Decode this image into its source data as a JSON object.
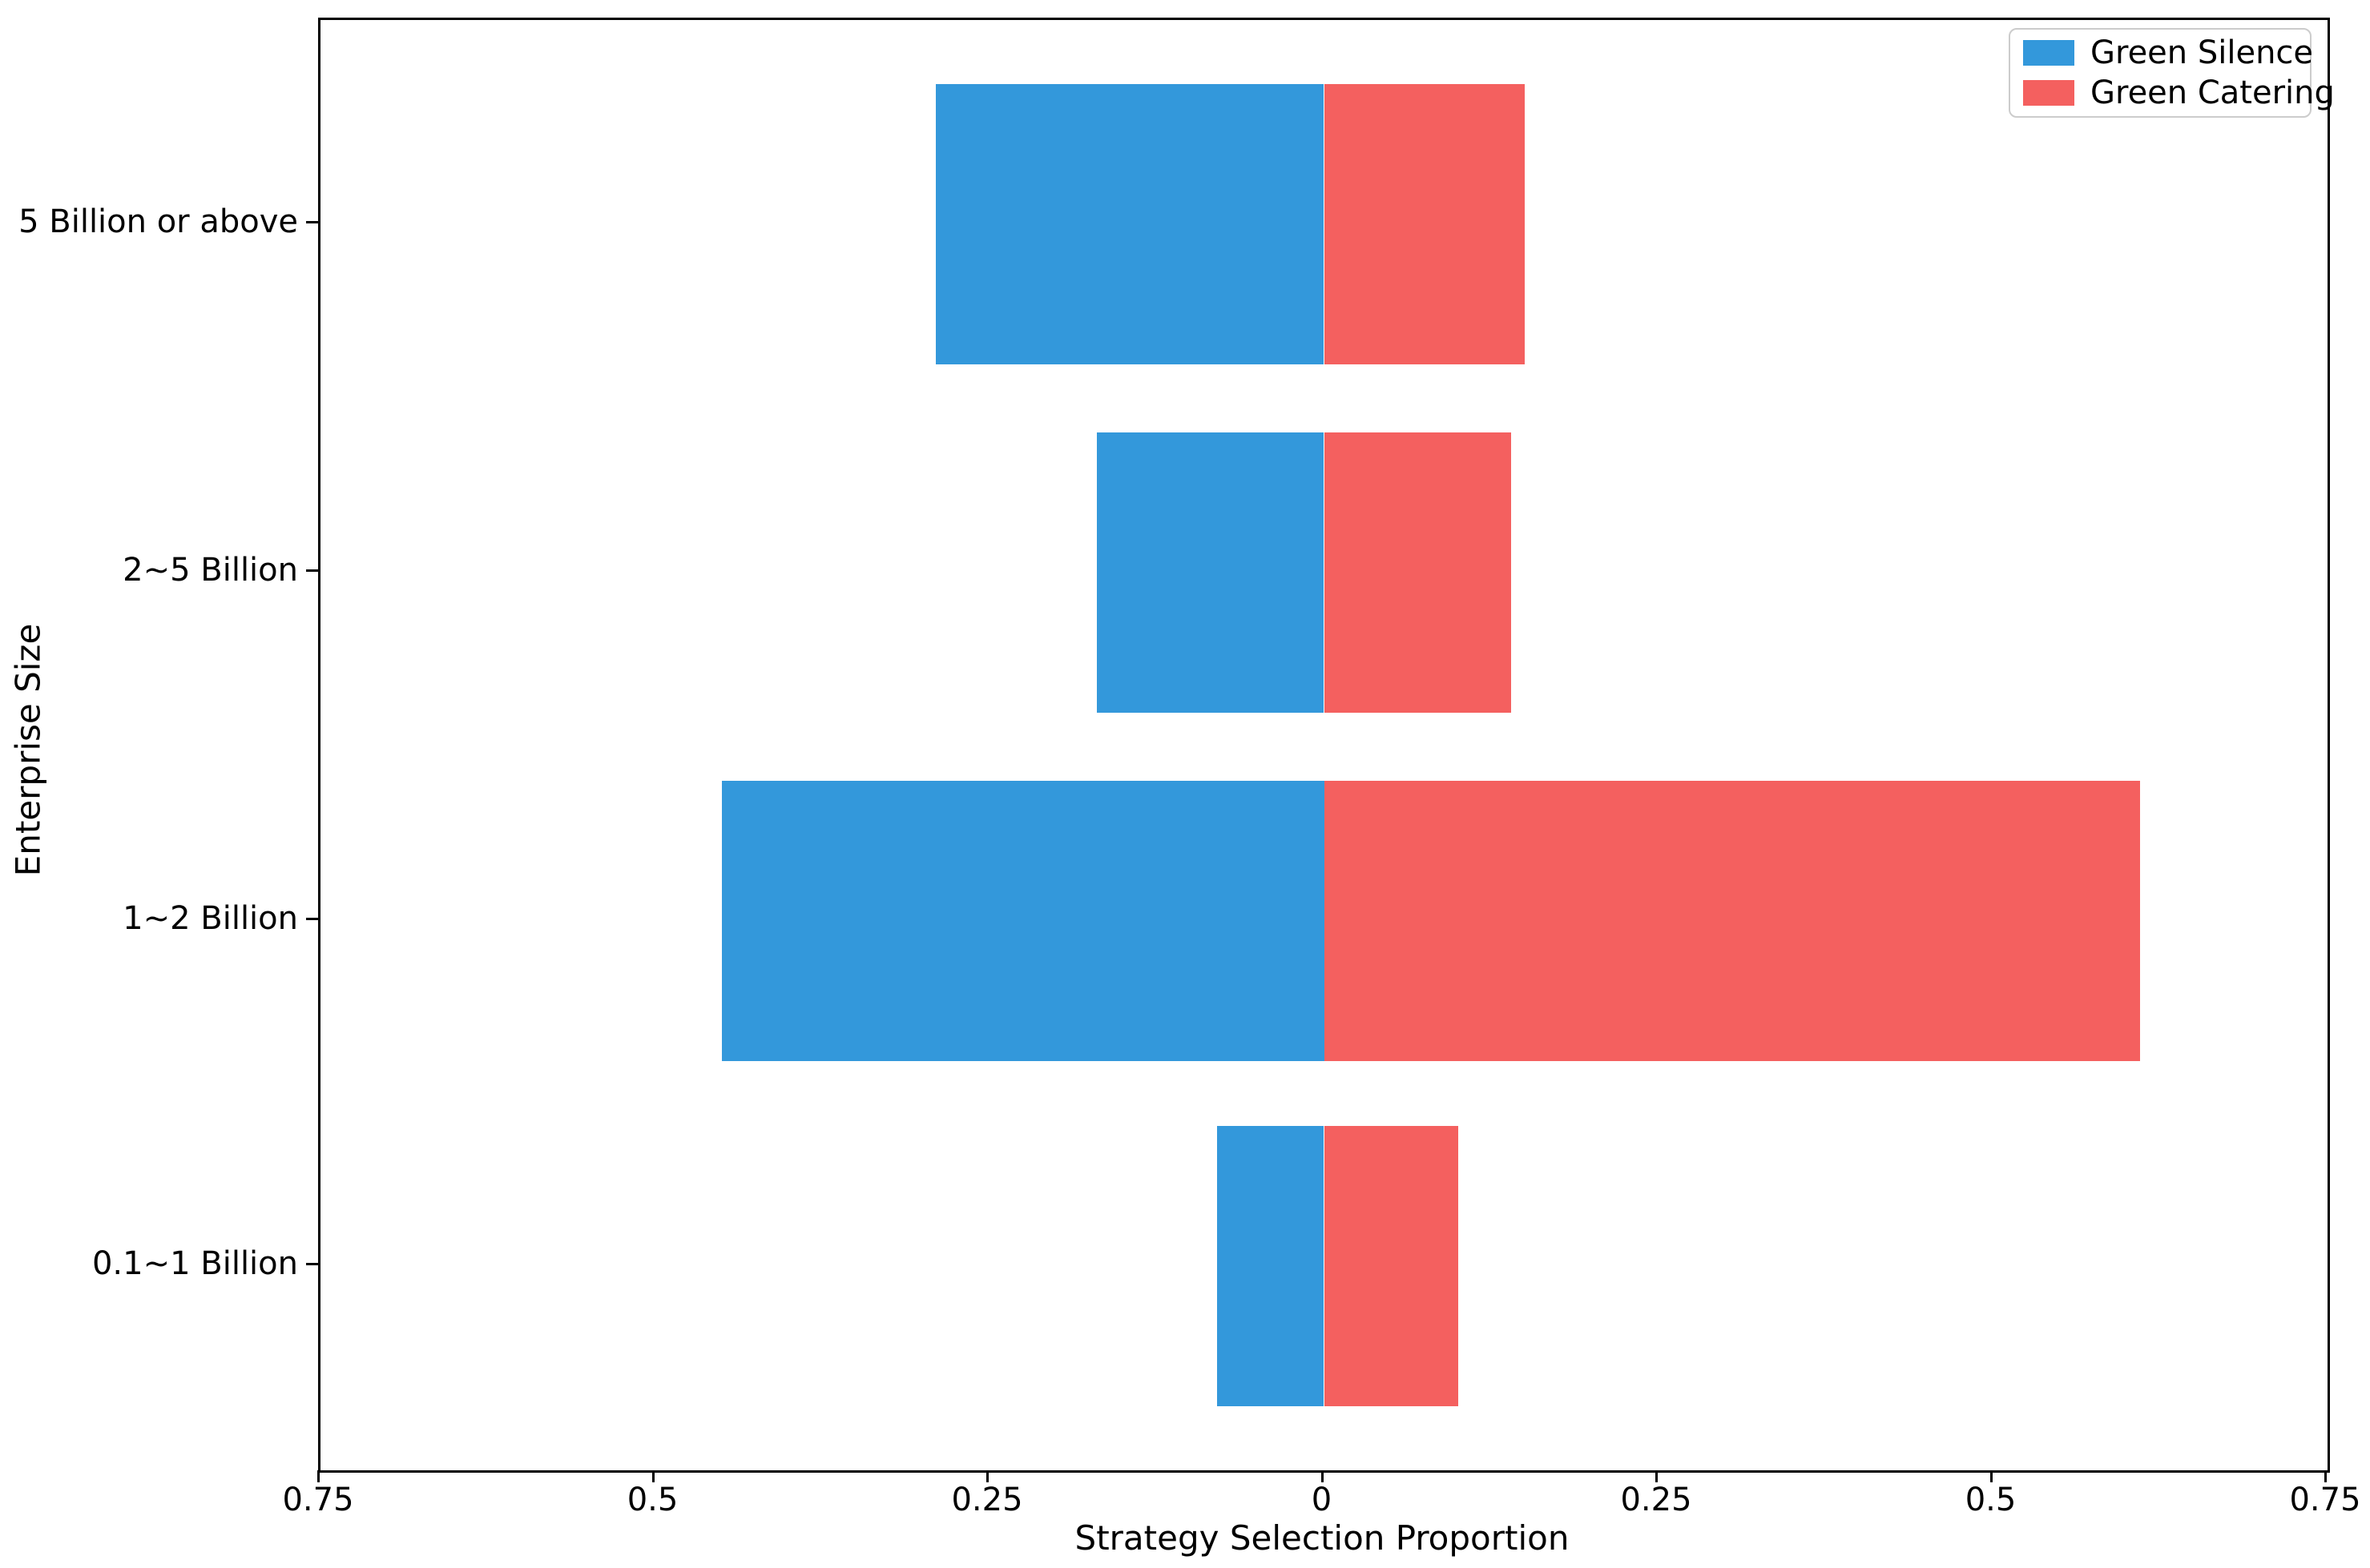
{
  "chart_data": {
    "type": "bar",
    "variant": "diverging-horizontal",
    "title": "",
    "xlabel": "Strategy Selection Proportion",
    "ylabel": "Enterprise Size",
    "categories_top_to_bottom": [
      "5 Billion or above",
      "2~5 Billion",
      "1~2 Billion",
      "0.1~1 Billion"
    ],
    "series": [
      {
        "name": "Green Silence",
        "color": "#3398db",
        "direction": "left",
        "values": [
          0.29,
          0.17,
          0.45,
          0.08
        ]
      },
      {
        "name": "Green Catering",
        "color": "#f4605f",
        "direction": "right",
        "values": [
          0.15,
          0.14,
          0.61,
          0.1
        ]
      }
    ],
    "xlim": [
      -0.75,
      0.75
    ],
    "x_tick_labels": [
      "0.75",
      "0.5",
      "0.25",
      "0",
      "0.25",
      "0.5",
      "0.75"
    ],
    "grid": false,
    "legend_position": "upper-right",
    "axis_color": "#000000",
    "legend_border_color": "#cccccc"
  }
}
